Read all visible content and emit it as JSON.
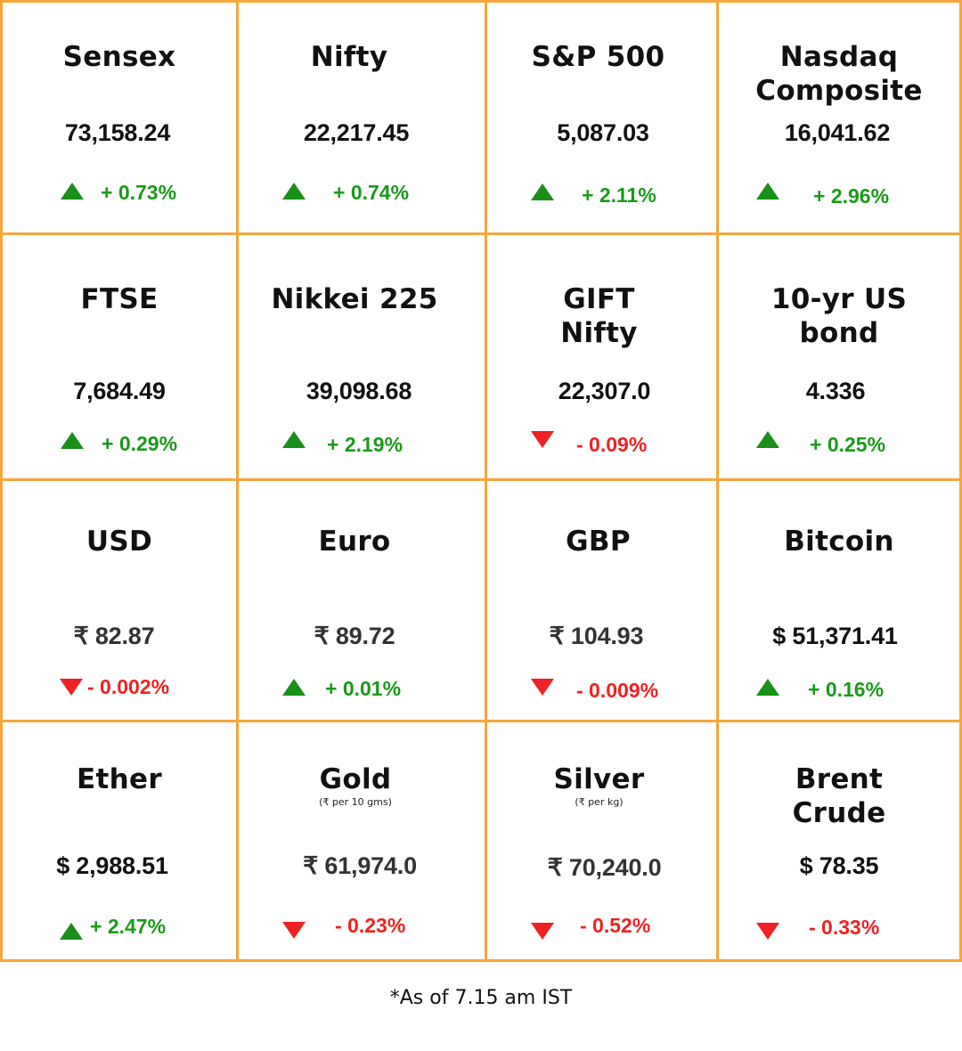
{
  "colors": {
    "border": "#F5A63A",
    "up": "#1a9a1a",
    "down": "#ee2222"
  },
  "cells": {
    "sensex": {
      "name": "Sensex",
      "value": "73,158.24",
      "change": "+ 0.73%",
      "direction": "up",
      "arrow_icon": "triangle-up-icon"
    },
    "nifty": {
      "name": "Nifty",
      "value": "22,217.45",
      "change": "+ 0.74%",
      "direction": "up",
      "arrow_icon": "triangle-up-icon"
    },
    "sp500": {
      "name": "S&P 500",
      "value": "5,087.03",
      "change": "+ 2.11%",
      "direction": "up",
      "arrow_icon": "triangle-up-icon"
    },
    "nasdaq": {
      "name": "Nasdaq\nComposite",
      "value": "16,041.62",
      "change": "+ 2.96%",
      "direction": "up",
      "arrow_icon": "triangle-up-icon"
    },
    "ftse": {
      "name": "FTSE",
      "value": "7,684.49",
      "change": "+ 0.29%",
      "direction": "up",
      "arrow_icon": "triangle-up-icon"
    },
    "nikkei": {
      "name": "Nikkei 225",
      "value": "39,098.68",
      "change": "+ 2.19%",
      "direction": "up",
      "arrow_icon": "triangle-up-icon"
    },
    "gift_nifty": {
      "name": "GIFT\nNifty",
      "value": "22,307.0",
      "change": "- 0.09%",
      "direction": "down",
      "arrow_icon": "triangle-down-icon"
    },
    "us_bond": {
      "name": "10-yr US\nbond",
      "value": "4.336",
      "change": "+ 0.25%",
      "direction": "up",
      "arrow_icon": "triangle-up-icon"
    },
    "usd": {
      "name": "USD",
      "value": "₹ 82.87",
      "change": "- 0.002%",
      "direction": "down",
      "arrow_icon": "triangle-down-icon"
    },
    "euro": {
      "name": "Euro",
      "value": "₹ 89.72",
      "change": "+ 0.01%",
      "direction": "up",
      "arrow_icon": "triangle-up-icon"
    },
    "gbp": {
      "name": "GBP",
      "value": "₹ 104.93",
      "change": "- 0.009%",
      "direction": "down",
      "arrow_icon": "triangle-down-icon"
    },
    "bitcoin": {
      "name": "Bitcoin",
      "value": "$ 51,371.41",
      "change": "+ 0.16%",
      "direction": "up",
      "arrow_icon": "triangle-up-icon"
    },
    "ether": {
      "name": "Ether",
      "value": "$ 2,988.51",
      "change": "+ 2.47%",
      "direction": "up",
      "arrow_icon": "triangle-up-icon"
    },
    "gold": {
      "name": "Gold",
      "unit": "(₹ per 10 gms)",
      "value": "₹ 61,974.0",
      "change": "- 0.23%",
      "direction": "down",
      "arrow_icon": "triangle-down-icon"
    },
    "silver": {
      "name": "Silver",
      "unit": "(₹ per kg)",
      "value": "₹ 70,240.0",
      "change": "- 0.52%",
      "direction": "down",
      "arrow_icon": "triangle-down-icon"
    },
    "brent": {
      "name": "Brent\nCrude",
      "value": "$ 78.35",
      "change": "- 0.33%",
      "direction": "down",
      "arrow_icon": "triangle-down-icon"
    }
  },
  "footnote": "*As of 7.15 am IST"
}
